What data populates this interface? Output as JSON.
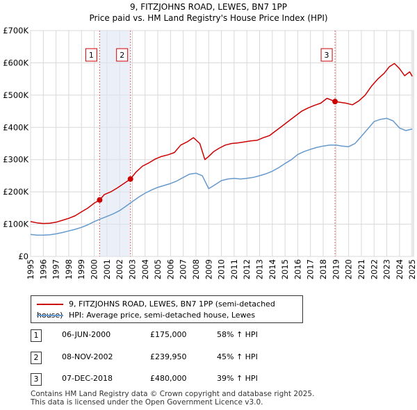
{
  "chart_data": {
    "type": "line",
    "title": "9, FITZJOHNS ROAD, LEWES, BN7 1PP",
    "subtitle": "Price paid vs. HM Land Registry's House Price Index (HPI)",
    "y_tick_labels": [
      "£0",
      "£100K",
      "£200K",
      "£300K",
      "£400K",
      "£500K",
      "£600K",
      "£700K"
    ],
    "y_ticks": [
      0,
      100000,
      200000,
      300000,
      400000,
      500000,
      600000,
      700000
    ],
    "ylim": [
      0,
      700000
    ],
    "x_tick_labels": [
      "1995",
      "1996",
      "1997",
      "1998",
      "1999",
      "2000",
      "2001",
      "2002",
      "2003",
      "2004",
      "2005",
      "2006",
      "2007",
      "2008",
      "2009",
      "2010",
      "2011",
      "2012",
      "2013",
      "2014",
      "2015",
      "2016",
      "2017",
      "2018",
      "2019",
      "2020",
      "2021",
      "2022",
      "2023",
      "2024",
      "2025"
    ],
    "xlim": [
      1995,
      2025.1
    ],
    "series": [
      {
        "name": "9, FITZJOHNS ROAD, LEWES, BN7 1PP (semi-detached house)",
        "color": "#cc0000",
        "x": [
          1995.0,
          1995.5,
          1996.0,
          1996.5,
          1997.0,
          1997.5,
          1998.0,
          1998.5,
          1999.0,
          1999.5,
          2000.0,
          2000.43,
          2000.8,
          2001.3,
          2001.8,
          2002.3,
          2002.85,
          2003.3,
          2003.8,
          2004.3,
          2004.8,
          2005.3,
          2005.8,
          2006.3,
          2006.8,
          2007.3,
          2007.8,
          2008.3,
          2008.7,
          2009.0,
          2009.4,
          2009.8,
          2010.3,
          2010.8,
          2011.3,
          2011.8,
          2012.3,
          2012.8,
          2013.3,
          2013.8,
          2014.3,
          2014.8,
          2015.3,
          2015.8,
          2016.3,
          2016.8,
          2017.3,
          2017.8,
          2018.3,
          2018.93,
          2019.3,
          2019.8,
          2020.3,
          2020.8,
          2021.3,
          2021.8,
          2022.3,
          2022.8,
          2023.2,
          2023.6,
          2024.0,
          2024.4,
          2024.8,
          2025.0
        ],
        "values": [
          108000,
          104000,
          102000,
          103000,
          106000,
          112000,
          118000,
          126000,
          138000,
          150000,
          165000,
          175000,
          192000,
          200000,
          212000,
          225000,
          239950,
          262000,
          280000,
          290000,
          302000,
          310000,
          315000,
          322000,
          345000,
          355000,
          368000,
          350000,
          300000,
          310000,
          325000,
          335000,
          345000,
          350000,
          352000,
          355000,
          358000,
          360000,
          368000,
          375000,
          390000,
          405000,
          420000,
          435000,
          450000,
          460000,
          468000,
          475000,
          490000,
          480000,
          478000,
          475000,
          470000,
          482000,
          500000,
          528000,
          550000,
          568000,
          588000,
          598000,
          582000,
          560000,
          572000,
          558000
        ]
      },
      {
        "name": "HPI: Average price, semi-detached house, Lewes",
        "color": "#6699cc",
        "x": [
          1995.0,
          1995.5,
          1996.0,
          1996.5,
          1997.0,
          1997.5,
          1998.0,
          1998.5,
          1999.0,
          1999.5,
          2000.0,
          2000.5,
          2001.0,
          2001.5,
          2002.0,
          2002.5,
          2003.0,
          2003.5,
          2004.0,
          2004.5,
          2005.0,
          2005.5,
          2006.0,
          2006.5,
          2007.0,
          2007.5,
          2008.0,
          2008.5,
          2009.0,
          2009.5,
          2010.0,
          2010.5,
          2011.0,
          2011.5,
          2012.0,
          2012.5,
          2013.0,
          2013.5,
          2014.0,
          2014.5,
          2015.0,
          2015.5,
          2016.0,
          2016.5,
          2017.0,
          2017.5,
          2018.0,
          2018.5,
          2019.0,
          2019.5,
          2020.0,
          2020.5,
          2021.0,
          2021.5,
          2022.0,
          2022.5,
          2023.0,
          2023.5,
          2024.0,
          2024.5,
          2025.0
        ],
        "values": [
          68000,
          66000,
          66000,
          67000,
          70000,
          74000,
          79000,
          84000,
          90000,
          98000,
          108000,
          116000,
          124000,
          132000,
          142000,
          156000,
          170000,
          184000,
          196000,
          206000,
          214000,
          220000,
          226000,
          234000,
          245000,
          255000,
          258000,
          250000,
          210000,
          222000,
          235000,
          240000,
          242000,
          240000,
          242000,
          245000,
          250000,
          256000,
          264000,
          275000,
          288000,
          300000,
          316000,
          325000,
          332000,
          338000,
          342000,
          345000,
          345000,
          342000,
          340000,
          350000,
          372000,
          395000,
          418000,
          425000,
          428000,
          420000,
          398000,
          390000,
          395000
        ]
      }
    ],
    "sale_markers": [
      {
        "label": "1",
        "x": 2000.43,
        "value": 175000
      },
      {
        "label": "2",
        "x": 2002.85,
        "value": 239950
      },
      {
        "label": "3",
        "x": 2018.93,
        "value": 480000
      }
    ],
    "shaded_spans": [
      [
        2000.43,
        2002.85
      ]
    ],
    "forecast_start": 2024.9
  },
  "legend": {
    "property_label": "9, FITZJOHNS ROAD, LEWES, BN7 1PP (semi-detached house)",
    "hpi_label": "HPI: Average price, semi-detached house, Lewes"
  },
  "sales": [
    {
      "num": "1",
      "date": "06-JUN-2000",
      "price": "£175,000",
      "hpi": "58% ↑ HPI"
    },
    {
      "num": "2",
      "date": "08-NOV-2002",
      "price": "£239,950",
      "hpi": "45% ↑ HPI"
    },
    {
      "num": "3",
      "date": "07-DEC-2018",
      "price": "£480,000",
      "hpi": "39% ↑ HPI"
    }
  ],
  "footer": {
    "line1": "Contains HM Land Registry data © Crown copyright and database right 2025.",
    "line2": "This data is licensed under the Open Government Licence v3.0."
  }
}
